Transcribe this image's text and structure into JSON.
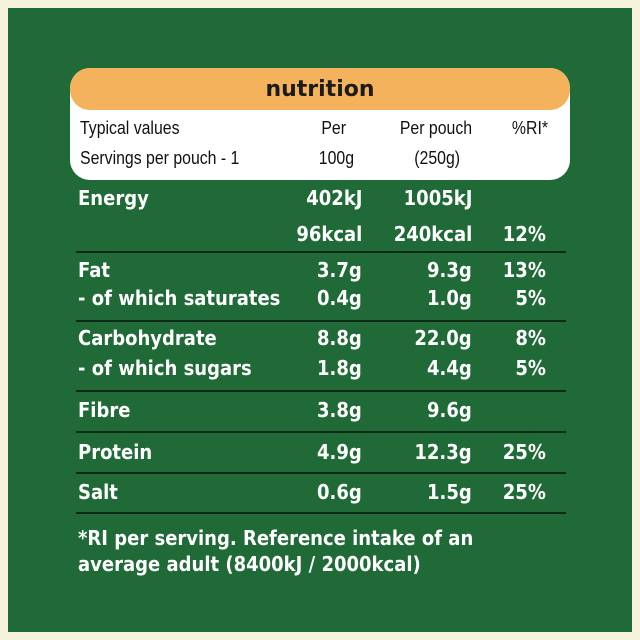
{
  "title": "nutrition",
  "header": {
    "col1_line1": "Typical values",
    "col1_line2": "Servings per pouch - 1",
    "col2_line1": "Per",
    "col2_line2": "100g",
    "col3_line1": "Per pouch",
    "col3_line2": "(250g)",
    "col4_line1": "%RI*"
  },
  "rows": [
    {
      "label": "Energy",
      "per100": "402kJ",
      "perPouch": "1005kJ",
      "ri": ""
    },
    {
      "label": "",
      "per100": "96kcal",
      "perPouch": "240kcal",
      "ri": "12%"
    },
    {
      "label": "Fat",
      "per100": "3.7g",
      "perPouch": "9.3g",
      "ri": "13%"
    },
    {
      "label": "- of which saturates",
      "per100": "0.4g",
      "perPouch": "1.0g",
      "ri": "5%"
    },
    {
      "label": "Carbohydrate",
      "per100": "8.8g",
      "perPouch": "22.0g",
      "ri": "8%"
    },
    {
      "label": "- of which sugars",
      "per100": "1.8g",
      "perPouch": "4.4g",
      "ri": "5%"
    },
    {
      "label": "Fibre",
      "per100": "3.8g",
      "perPouch": "9.6g",
      "ri": ""
    },
    {
      "label": "Protein",
      "per100": "4.9g",
      "perPouch": "12.3g",
      "ri": "25%"
    },
    {
      "label": "Salt",
      "per100": "0.6g",
      "perPouch": "1.5g",
      "ri": "25%"
    }
  ],
  "footnote": {
    "line1": "*RI per serving. Reference intake of an",
    "line2": "average adult (8400kJ / 2000kcal)"
  },
  "colors": {
    "background": "#1f6a36",
    "title_band": "#f4b25c",
    "header_card": "#ffffff",
    "text": "#ffffff"
  }
}
